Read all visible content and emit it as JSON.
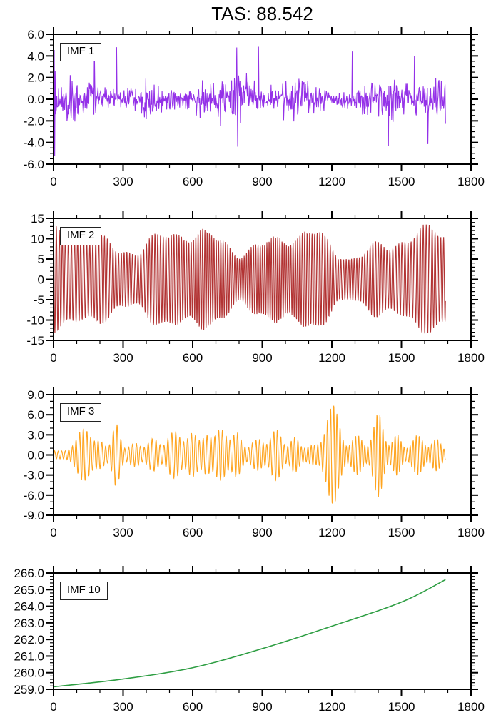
{
  "figure": {
    "title": "TAS: 88.542",
    "background": "#ffffff",
    "axis_color": "#000000",
    "text_color": "#000000"
  },
  "chart_data": [
    {
      "type": "line",
      "label": "IMF 1",
      "color": "#9431E8",
      "x": {
        "min": 0,
        "max": 1800,
        "data_end": 1690,
        "major_ticks": [
          0,
          300,
          600,
          900,
          1200,
          1500,
          1800
        ],
        "tick_labels": [
          "0",
          "300",
          "600",
          "900",
          "1200",
          "1500",
          "1800"
        ],
        "minor_step": 100
      },
      "y": {
        "min": -6,
        "max": 6,
        "major_values": [
          6,
          4,
          2,
          0,
          -2,
          -4,
          -6
        ],
        "major_labels": [
          "6.0",
          "4.0",
          "2.0",
          "0.0",
          "-2.0",
          "-4.0",
          "-6.0"
        ],
        "minor_step": 0.5
      },
      "signal": {
        "kind": "noise",
        "seed": 17,
        "step": 2,
        "typical_amplitude": 1.5,
        "spike_amplitude_range": [
          3.4,
          5.0
        ],
        "spike_probability": 0.007,
        "initial_spikes": [
          [
            1,
            2.2
          ],
          [
            3,
            4.55
          ],
          [
            5,
            -5.25
          ],
          [
            7,
            2.6
          ],
          [
            9,
            -1.4
          ]
        ],
        "description": "broadband high-frequency noise, typical +/-1.5, sporadic spikes to +/-5"
      }
    },
    {
      "type": "line",
      "label": "IMF 2",
      "color": "#B23333",
      "x": {
        "min": 0,
        "max": 1800,
        "data_end": 1690,
        "major_ticks": [
          0,
          300,
          600,
          900,
          1200,
          1500,
          1800
        ],
        "tick_labels": [
          "0",
          "300",
          "600",
          "900",
          "1200",
          "1500",
          "1800"
        ],
        "minor_step": 100
      },
      "y": {
        "min": -15,
        "max": 15,
        "major_values": [
          15,
          10,
          5,
          0,
          -5,
          -10,
          -15
        ],
        "major_labels": [
          "15",
          "10",
          "5",
          "0",
          "-5",
          "-10",
          "-15"
        ],
        "minor_step": 1
      },
      "signal": {
        "kind": "am-oscillation",
        "seed": 29,
        "period": 11.2,
        "mean_amplitude": 9.4,
        "amplitude_range": [
          5,
          13.5
        ],
        "envelope_dip_center": 1255,
        "envelope_dip_factor": 0.38,
        "description": "quasi-periodic oscillation (~11 step period), envelope 7-13, weaker near x=1250"
      }
    },
    {
      "type": "line",
      "label": "IMF 3",
      "color": "#FFA41E",
      "x": {
        "min": 0,
        "max": 1800,
        "data_end": 1690,
        "major_ticks": [
          0,
          300,
          600,
          900,
          1200,
          1500,
          1800
        ],
        "tick_labels": [
          "0",
          "300",
          "600",
          "900",
          "1200",
          "1500",
          "1800"
        ],
        "minor_step": 100
      },
      "y": {
        "min": -9,
        "max": 9,
        "major_values": [
          9,
          6,
          3,
          0,
          -3,
          -6,
          -9
        ],
        "major_labels": [
          "9.0",
          "6.0",
          "3.0",
          "0.0",
          "-3.0",
          "-6.0",
          "-9.0"
        ],
        "minor_step": 1
      },
      "signal": {
        "kind": "burst-oscillation",
        "seed": 41,
        "period": 15,
        "base_amplitude": 0.55,
        "bursts": [
          [
            130,
            3.4,
            28
          ],
          [
            200,
            1.4,
            20
          ],
          [
            270,
            4.1,
            16
          ],
          [
            350,
            1.2,
            22
          ],
          [
            430,
            1.9,
            22
          ],
          [
            520,
            3.0,
            26
          ],
          [
            600,
            2.7,
            22
          ],
          [
            660,
            2.2,
            18
          ],
          [
            720,
            3.3,
            24
          ],
          [
            790,
            2.7,
            20
          ],
          [
            880,
            1.8,
            24
          ],
          [
            960,
            3.3,
            22
          ],
          [
            1040,
            2.1,
            18
          ],
          [
            1120,
            0.9,
            26
          ],
          [
            1205,
            6.9,
            26
          ],
          [
            1310,
            2.4,
            22
          ],
          [
            1400,
            5.7,
            20
          ],
          [
            1480,
            2.5,
            18
          ],
          [
            1570,
            2.4,
            22
          ],
          [
            1650,
            1.9,
            18
          ]
        ],
        "description": "intermittent oscillation bursts (~15 step period); largest burst ~+/-7 near x=1200, ~+/-6 near x=1400"
      }
    },
    {
      "type": "line",
      "label": "IMF 10",
      "color": "#2E9E43",
      "x": {
        "min": 0,
        "max": 1800,
        "data_end": 1690,
        "major_ticks": [
          0,
          300,
          600,
          900,
          1200,
          1500,
          1800
        ],
        "tick_labels": [
          "0",
          "300",
          "600",
          "900",
          "1200",
          "1500",
          "1800"
        ],
        "minor_step": 100
      },
      "y": {
        "min": 259,
        "max": 266,
        "major_values": [
          266,
          265,
          264,
          263,
          262,
          261,
          260,
          259
        ],
        "major_labels": [
          "266.0",
          "265.0",
          "264.0",
          "263.0",
          "262.0",
          "261.0",
          "260.0",
          "259.0"
        ],
        "minor_step": 0.2
      },
      "signal": {
        "kind": "trend",
        "points": [
          [
            0,
            259.15
          ],
          [
            300,
            259.62
          ],
          [
            600,
            260.3
          ],
          [
            900,
            261.45
          ],
          [
            1200,
            262.8
          ],
          [
            1500,
            264.25
          ],
          [
            1690,
            265.6
          ]
        ],
        "description": "smooth monotonically increasing residual trend from ~259.2 to ~265.6"
      }
    }
  ]
}
